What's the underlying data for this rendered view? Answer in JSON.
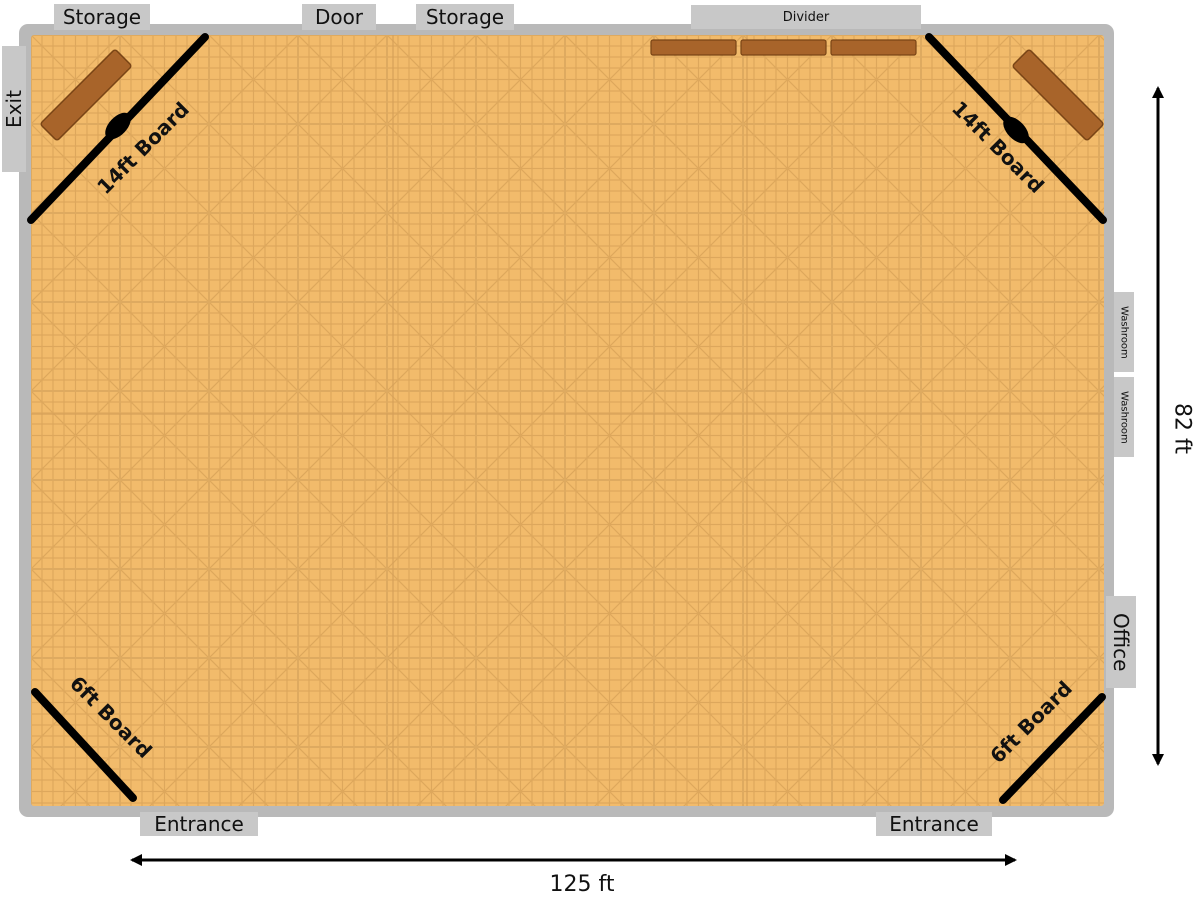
{
  "colors": {
    "floor": "#f2bb6b",
    "wall": "#b9b9b9",
    "label_bg": "#c8c8c8",
    "board": "#000000",
    "bench": "#a8642a"
  },
  "labels": {
    "storage_left": "Storage",
    "door": "Door",
    "storage_right": "Storage",
    "divider": "Divider",
    "exit": "Exit",
    "washroom_1": "Washroom",
    "washroom_2": "Washroom",
    "office": "Office",
    "entrance_left": "Entrance",
    "entrance_right": "Entrance"
  },
  "boards": {
    "top_left": "14ft Board",
    "top_right": "14ft Board",
    "bottom_left": "6ft Board",
    "bottom_right": "6ft Board"
  },
  "dimensions": {
    "width": "125 ft",
    "height": "82 ft"
  }
}
